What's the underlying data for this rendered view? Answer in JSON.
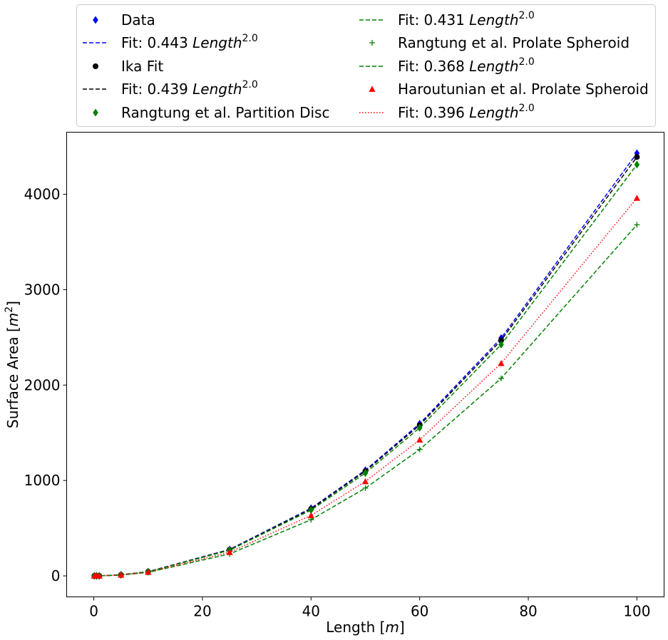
{
  "chart_data": {
    "type": "line",
    "xlabel": "Length [m]",
    "xlabel_parts": [
      "Length [",
      "m",
      "]"
    ],
    "ylabel": "Surface Area [m^2]",
    "ylabel_parts": [
      "Surface Area [",
      "m",
      "2",
      "]"
    ],
    "xlim": [
      -5,
      105
    ],
    "ylim": [
      -220,
      4650
    ],
    "x_ticks": [
      0,
      20,
      40,
      60,
      80,
      100
    ],
    "y_ticks": [
      0,
      1000,
      2000,
      3000,
      4000
    ],
    "grid": false,
    "legend_placement": "top, outside, two columns",
    "x": [
      0.1,
      0.5,
      1,
      5,
      10,
      25,
      40,
      50,
      60,
      75,
      100
    ],
    "series": [
      {
        "name": "Data",
        "kind": "markers",
        "marker": "diamond",
        "color": "#0000ff",
        "values": [
          0.0044,
          0.11,
          0.44,
          11.1,
          44.3,
          277,
          709,
          1108,
          1595,
          2492,
          4430
        ]
      },
      {
        "name": "Fit: 0.443 Length^2.0",
        "name_parts": [
          "Fit: 0.443 ",
          "Length",
          "2.0"
        ],
        "kind": "line",
        "dash": "dashed",
        "color": "#0000ff",
        "values": [
          0.0044,
          0.11,
          0.44,
          11.1,
          44.3,
          277,
          709,
          1108,
          1595,
          2492,
          4430
        ]
      },
      {
        "name": "Ika Fit",
        "kind": "markers",
        "marker": "circle",
        "color": "#000000",
        "values": [
          0.0044,
          0.11,
          0.44,
          11.0,
          43.9,
          274,
          702,
          1098,
          1580,
          2469,
          4390
        ]
      },
      {
        "name": "Fit: 0.439 Length^2.0",
        "name_parts": [
          "Fit: 0.439 ",
          "Length",
          "2.0"
        ],
        "kind": "line",
        "dash": "dashed",
        "color": "#000000",
        "values": [
          0.0044,
          0.11,
          0.44,
          11.0,
          43.9,
          274,
          702,
          1098,
          1580,
          2469,
          4390
        ]
      },
      {
        "name": "Rangtung et al. Partition Disc",
        "kind": "markers",
        "marker": "diamond",
        "color": "#008000",
        "values": [
          0.0043,
          0.11,
          0.43,
          10.8,
          43.1,
          269,
          690,
          1078,
          1552,
          2424,
          4310
        ]
      },
      {
        "name": "Fit: 0.431 Length^2.0",
        "name_parts": [
          "Fit: 0.431 ",
          "Length",
          "2.0"
        ],
        "kind": "line",
        "dash": "dashed",
        "color": "#008000",
        "values": [
          0.0043,
          0.11,
          0.43,
          10.8,
          43.1,
          269,
          690,
          1078,
          1552,
          2424,
          4310
        ]
      },
      {
        "name": "Rangtung et al. Prolate Spheroid",
        "kind": "markers",
        "marker": "plus",
        "color": "#008000",
        "values": [
          0.0037,
          0.092,
          0.37,
          9.2,
          36.8,
          230,
          589,
          920,
          1325,
          2070,
          3680
        ]
      },
      {
        "name": "Fit: 0.368 Length^2.0",
        "name_parts": [
          "Fit: 0.368 ",
          "Length",
          "2.0"
        ],
        "kind": "line",
        "dash": "dashed",
        "color": "#008000",
        "values": [
          0.0037,
          0.092,
          0.37,
          9.2,
          36.8,
          230,
          589,
          920,
          1325,
          2070,
          3680
        ]
      },
      {
        "name": "Haroutunian et al. Prolate Spheroid",
        "kind": "markers",
        "marker": "triangle",
        "color": "#ff0000",
        "values": [
          0.004,
          0.099,
          0.4,
          9.9,
          39.6,
          248,
          634,
          990,
          1426,
          2228,
          3960
        ]
      },
      {
        "name": "Fit: 0.396 Length^2.0",
        "name_parts": [
          "Fit: 0.396 ",
          "Length",
          "2.0"
        ],
        "kind": "line",
        "dash": "dotted",
        "color": "#ff0000",
        "values": [
          0.004,
          0.099,
          0.4,
          9.9,
          39.6,
          248,
          634,
          990,
          1426,
          2228,
          3960
        ]
      }
    ]
  }
}
